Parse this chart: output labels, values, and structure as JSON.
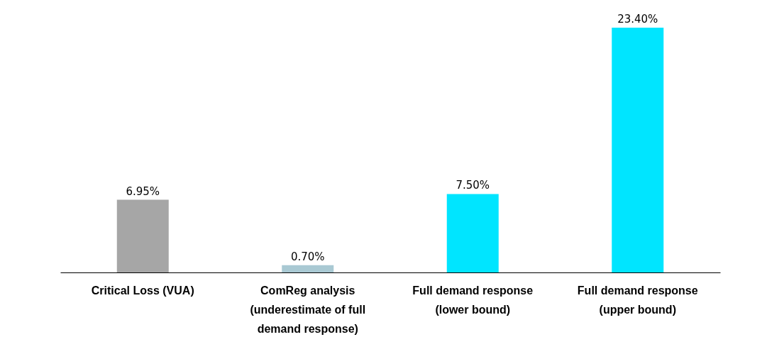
{
  "chart_data": {
    "type": "bar",
    "categories": [
      "Critical Loss (VUA)",
      "ComReg analysis (underestimate of full demand response)",
      "Full demand response (lower bound)",
      "Full demand response (upper bound)"
    ],
    "values": [
      6.95,
      0.7,
      7.5,
      23.4
    ],
    "colors": [
      "#a6a6a6",
      "#a9c9d3",
      "#00e5ff",
      "#00e5ff"
    ],
    "value_labels": [
      "6.95%",
      "0.70%",
      "7.50%",
      "23.40%"
    ]
  }
}
